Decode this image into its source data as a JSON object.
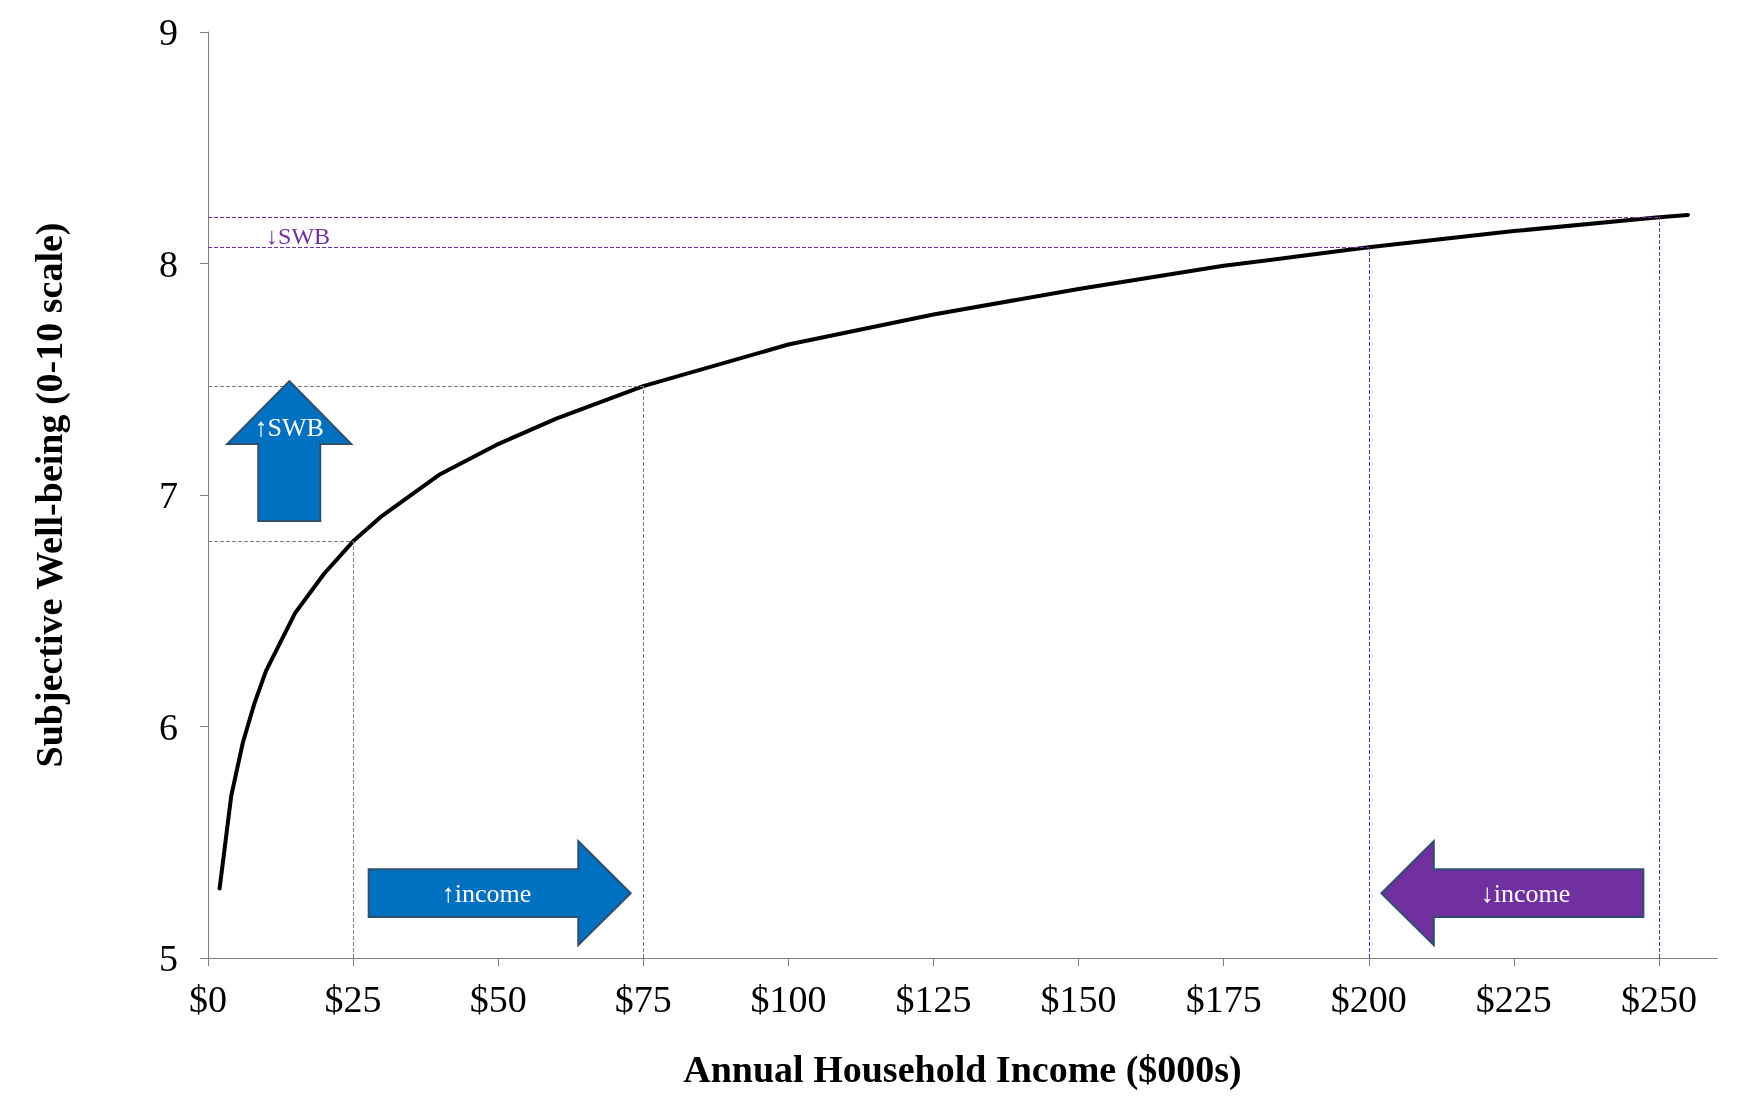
{
  "chart_data": {
    "type": "line",
    "xlabel": "Annual Household Income ($000s)",
    "ylabel": "Subjective Well-being (0-10 scale)",
    "x": [
      2,
      3,
      4,
      6,
      8,
      10,
      15,
      20,
      25,
      30,
      40,
      50,
      60,
      75,
      100,
      125,
      150,
      175,
      200,
      225,
      250,
      255
    ],
    "series": [
      {
        "color": "#000000",
        "values": [
          5.3,
          5.5,
          5.7,
          5.93,
          6.1,
          6.24,
          6.49,
          6.66,
          6.8,
          6.91,
          7.09,
          7.22,
          7.33,
          7.47,
          7.65,
          7.78,
          7.89,
          7.99,
          8.07,
          8.14,
          8.2,
          8.21
        ]
      }
    ],
    "xlim": [
      0,
      260
    ],
    "ylim": [
      5,
      9
    ],
    "xticks": [
      {
        "value": 0,
        "label": "$0"
      },
      {
        "value": 25,
        "label": "$25"
      },
      {
        "value": 50,
        "label": "$50"
      },
      {
        "value": 75,
        "label": "$75"
      },
      {
        "value": 100,
        "label": "$100"
      },
      {
        "value": 125,
        "label": "$125"
      },
      {
        "value": 150,
        "label": "$150"
      },
      {
        "value": 175,
        "label": "$175"
      },
      {
        "value": 200,
        "label": "$200"
      },
      {
        "value": 225,
        "label": "$225"
      },
      {
        "value": 250,
        "label": "$250"
      }
    ],
    "yticks": [
      5,
      6,
      7,
      8,
      9
    ],
    "grid": false,
    "marker": "none",
    "line_style": "solid",
    "ref_lines": [
      {
        "axis": "y",
        "value": 6.8,
        "color": "#7f7f7f",
        "line_style": "dashed"
      },
      {
        "axis": "y",
        "value": 7.47,
        "color": "#7f7f7f",
        "line_style": "dashed"
      },
      {
        "axis": "x",
        "value": 25,
        "color": "#7f7f7f",
        "line_style": "dashed"
      },
      {
        "axis": "x",
        "value": 75,
        "color": "#7f7f7f",
        "line_style": "dashed"
      },
      {
        "axis": "y",
        "value": 8.07,
        "color": "#7030a0",
        "line_style": "dashed"
      },
      {
        "axis": "y",
        "value": 8.2,
        "color": "#7030a0",
        "line_style": "dashed"
      },
      {
        "axis": "x",
        "value": 200,
        "color": "#7030a0",
        "line_style": "dashed"
      },
      {
        "axis": "x",
        "value": 250,
        "color": "#7030a0",
        "line_style": "dashed"
      }
    ],
    "annotations": [
      "↑SWB",
      "↑income",
      "↓income",
      "↓SWB"
    ]
  }
}
